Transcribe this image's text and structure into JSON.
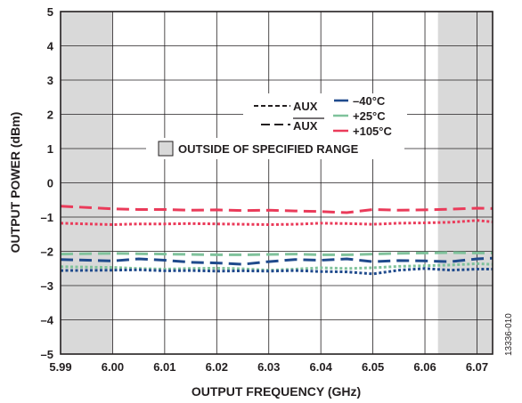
{
  "chart_data": {
    "type": "line",
    "xlabel": "OUTPUT FREQUENCY (GHz)",
    "ylabel": "OUTPUT POWER (dBm)",
    "xlim": [
      5.99,
      6.073
    ],
    "ylim": [
      -5,
      5
    ],
    "x_ticks": [
      "5.99",
      "6.00",
      "6.01",
      "6.02",
      "6.03",
      "6.04",
      "6.05",
      "6.06",
      "6.07"
    ],
    "x_tick_values": [
      5.99,
      6.0,
      6.01,
      6.02,
      6.03,
      6.04,
      6.05,
      6.06,
      6.07
    ],
    "y_ticks": [
      "5",
      "4",
      "3",
      "2",
      "1",
      "0",
      "–1",
      "–2",
      "–3",
      "–4",
      "–5"
    ],
    "y_tick_values": [
      5,
      4,
      3,
      2,
      1,
      0,
      -1,
      -2,
      -3,
      -4,
      -5
    ],
    "grid": true,
    "shaded_regions": [
      [
        5.99,
        6.0
      ],
      [
        6.0625,
        6.073
      ]
    ],
    "shaded_label": "OUTSIDE OF SPECIFIED RANGE",
    "legend": {
      "placement": "top-right",
      "style_labels": [
        "AUX",
        "AUX"
      ],
      "style_label_overlined": [
        false,
        true
      ],
      "temp_labels": [
        "–40°C",
        "+25°C",
        "+105°C"
      ]
    },
    "x": [
      5.99,
      6.0,
      6.005,
      6.01,
      6.015,
      6.02,
      6.025,
      6.03,
      6.035,
      6.04,
      6.045,
      6.05,
      6.055,
      6.06,
      6.065,
      6.07,
      6.073
    ],
    "series": [
      {
        "color": "#ea3b5a",
        "dash": "dash",
        "values": [
          -0.68,
          -0.76,
          -0.78,
          -0.78,
          -0.8,
          -0.79,
          -0.81,
          -0.8,
          -0.82,
          -0.84,
          -0.87,
          -0.78,
          -0.8,
          -0.79,
          -0.77,
          -0.74,
          -0.75
        ]
      },
      {
        "color": "#ea3b5a",
        "dash": "dot",
        "values": [
          -1.18,
          -1.22,
          -1.2,
          -1.2,
          -1.19,
          -1.2,
          -1.21,
          -1.22,
          -1.21,
          -1.18,
          -1.19,
          -1.21,
          -1.18,
          -1.17,
          -1.15,
          -1.1,
          -1.14
        ]
      },
      {
        "color": "#7fc29b",
        "dash": "dash",
        "values": [
          -2.08,
          -2.06,
          -2.07,
          -2.08,
          -2.09,
          -2.1,
          -2.1,
          -2.09,
          -2.08,
          -2.1,
          -2.1,
          -2.08,
          -2.06,
          -2.05,
          -2.04,
          -2.05,
          -2.05
        ]
      },
      {
        "color": "#7fc29b",
        "dash": "dot",
        "values": [
          -2.45,
          -2.47,
          -2.5,
          -2.52,
          -2.5,
          -2.49,
          -2.51,
          -2.55,
          -2.52,
          -2.48,
          -2.5,
          -2.48,
          -2.44,
          -2.42,
          -2.4,
          -2.36,
          -2.38
        ]
      },
      {
        "color": "#1f4a8c",
        "dash": "dash",
        "values": [
          -2.24,
          -2.28,
          -2.22,
          -2.26,
          -2.32,
          -2.34,
          -2.38,
          -2.3,
          -2.24,
          -2.26,
          -2.22,
          -2.3,
          -2.27,
          -2.28,
          -2.3,
          -2.22,
          -2.2
        ]
      },
      {
        "color": "#1f4a8c",
        "dash": "dot",
        "values": [
          -2.56,
          -2.55,
          -2.54,
          -2.57,
          -2.56,
          -2.58,
          -2.57,
          -2.58,
          -2.56,
          -2.59,
          -2.6,
          -2.66,
          -2.55,
          -2.5,
          -2.55,
          -2.52,
          -2.52
        ]
      }
    ]
  },
  "figure_id": "13336-010"
}
